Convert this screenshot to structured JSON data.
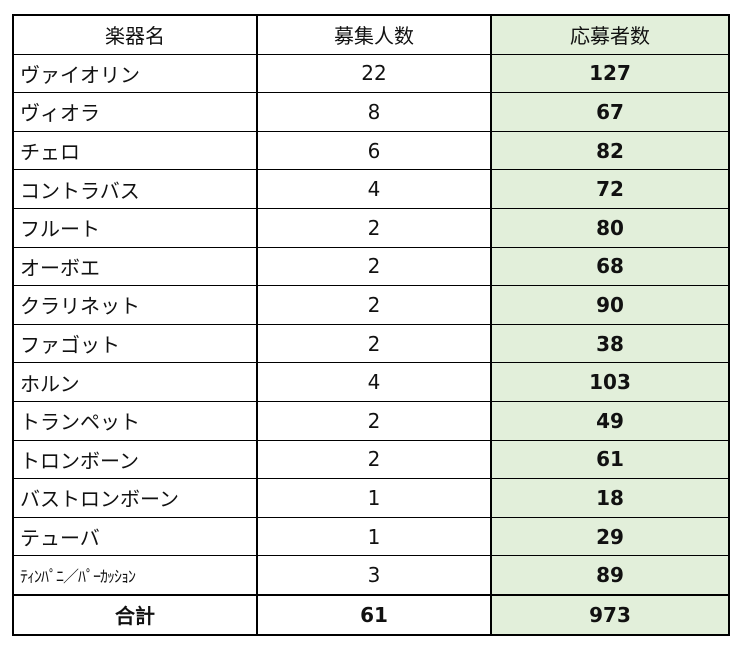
{
  "headers": [
    "楽器名",
    "募集人数",
    "応募者数"
  ],
  "colors": {
    "applicant_column_bg": "#E2EFDA"
  },
  "rows": [
    {
      "name": "ヴァイオリン",
      "recruit": "22",
      "applicants": "127"
    },
    {
      "name": "ヴィオラ",
      "recruit": "8",
      "applicants": "67"
    },
    {
      "name": "チェロ",
      "recruit": "6",
      "applicants": "82"
    },
    {
      "name": "コントラバス",
      "recruit": "4",
      "applicants": "72"
    },
    {
      "name": "フルート",
      "recruit": "2",
      "applicants": "80"
    },
    {
      "name": "オーボエ",
      "recruit": "2",
      "applicants": "68"
    },
    {
      "name": "クラリネット",
      "recruit": "2",
      "applicants": "90"
    },
    {
      "name": "ファゴット",
      "recruit": "2",
      "applicants": "38"
    },
    {
      "name": "ホルン",
      "recruit": "4",
      "applicants": "103"
    },
    {
      "name": "トランペット",
      "recruit": "2",
      "applicants": "49"
    },
    {
      "name": "トロンボーン",
      "recruit": "2",
      "applicants": "61"
    },
    {
      "name": "バストロンボーン",
      "recruit": "1",
      "applicants": "18"
    },
    {
      "name": "テューバ",
      "recruit": "1",
      "applicants": "29"
    },
    {
      "name": "ﾃｨﾝﾊﾟﾆ／ﾊﾟｰｶｯｼｮﾝ",
      "recruit": "3",
      "applicants": "89"
    }
  ],
  "total": {
    "label": "合計",
    "recruit": "61",
    "applicants": "973"
  }
}
